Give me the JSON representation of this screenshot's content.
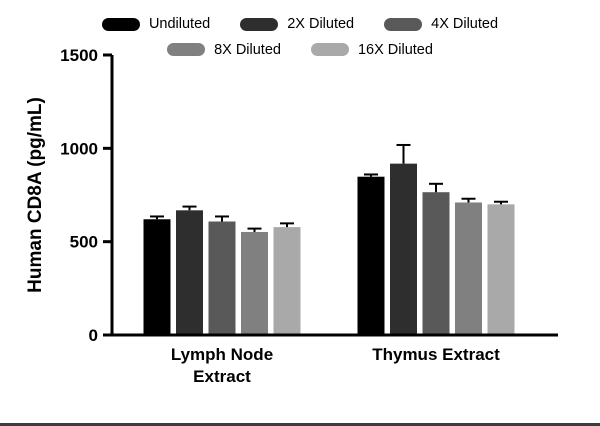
{
  "chart_data": {
    "type": "bar",
    "title": "",
    "xlabel": "",
    "ylabel": "Human CD8A (pg/mL)",
    "ylim": [
      0,
      1500
    ],
    "yticks": [
      0,
      500,
      1000,
      1500
    ],
    "grid": false,
    "legend_position": "top",
    "categories": [
      "Lymph Node Extract",
      "Thymus Extract"
    ],
    "series": [
      {
        "name": "Undiluted",
        "color": "#000000",
        "values": [
          620,
          848
        ],
        "errors": [
          15,
          12
        ]
      },
      {
        "name": "2X Diluted",
        "color": "#2e2e2e",
        "values": [
          668,
          918
        ],
        "errors": [
          20,
          100
        ]
      },
      {
        "name": "4X Diluted",
        "color": "#595959",
        "values": [
          608,
          765
        ],
        "errors": [
          27,
          45
        ]
      },
      {
        "name": "8X Diluted",
        "color": "#808080",
        "values": [
          552,
          710
        ],
        "errors": [
          18,
          20
        ]
      },
      {
        "name": "16X Diluted",
        "color": "#a9a9a9",
        "values": [
          578,
          700
        ],
        "errors": [
          20,
          14
        ]
      }
    ]
  }
}
